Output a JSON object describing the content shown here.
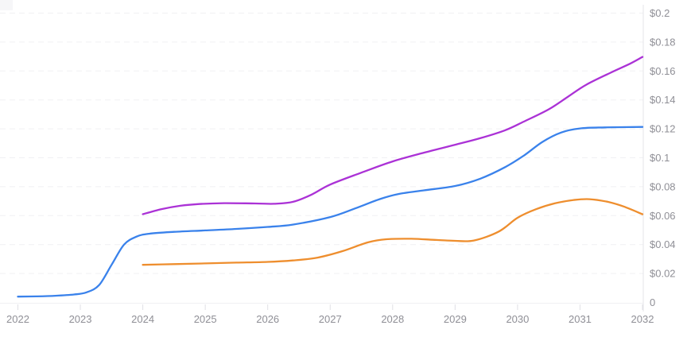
{
  "page": {
    "background": "#ffffff",
    "label_color": "#8f8f96",
    "axis_line_color": "#e4e4e9",
    "tick_color": "#e0e0e5",
    "grid_color": "#f0f0f3"
  },
  "chart_data": {
    "type": "line",
    "title": "",
    "xlabel": "",
    "ylabel": "",
    "legend": "none",
    "grid": "horizontal-dashed",
    "y_axis_side": "right",
    "xlim": [
      2022,
      2032
    ],
    "ylim": [
      0,
      0.2
    ],
    "x_ticks": [
      {
        "v": 2022,
        "label": "2022"
      },
      {
        "v": 2023,
        "label": "2023"
      },
      {
        "v": 2024,
        "label": "2024"
      },
      {
        "v": 2025,
        "label": "2025"
      },
      {
        "v": 2026,
        "label": "2026"
      },
      {
        "v": 2027,
        "label": "2027"
      },
      {
        "v": 2028,
        "label": "2028"
      },
      {
        "v": 2029,
        "label": "2029"
      },
      {
        "v": 2030,
        "label": "2030"
      },
      {
        "v": 2031,
        "label": "2031"
      },
      {
        "v": 2032,
        "label": "2032"
      }
    ],
    "y_ticks": [
      {
        "v": 0.0,
        "label": "0"
      },
      {
        "v": 0.02,
        "label": "$0.02"
      },
      {
        "v": 0.04,
        "label": "$0.04"
      },
      {
        "v": 0.06,
        "label": "$0.06"
      },
      {
        "v": 0.08,
        "label": "$0.08"
      },
      {
        "v": 0.1,
        "label": "$0.1"
      },
      {
        "v": 0.12,
        "label": "$0.12"
      },
      {
        "v": 0.14,
        "label": "$0.14"
      },
      {
        "v": 0.16,
        "label": "$0.16"
      },
      {
        "v": 0.18,
        "label": "$0.18"
      },
      {
        "v": 0.2,
        "label": "$0.2"
      }
    ],
    "series": [
      {
        "name": "blue",
        "color": "#3a82eb",
        "points": [
          [
            2022.0,
            0.004
          ],
          [
            2022.3,
            0.0042
          ],
          [
            2022.6,
            0.0046
          ],
          [
            2022.9,
            0.0055
          ],
          [
            2023.1,
            0.007
          ],
          [
            2023.3,
            0.012
          ],
          [
            2023.5,
            0.026
          ],
          [
            2023.7,
            0.04
          ],
          [
            2023.9,
            0.0455
          ],
          [
            2024.1,
            0.0475
          ],
          [
            2024.5,
            0.0488
          ],
          [
            2025.0,
            0.0498
          ],
          [
            2025.5,
            0.0508
          ],
          [
            2026.0,
            0.0522
          ],
          [
            2026.4,
            0.0538
          ],
          [
            2027.0,
            0.059
          ],
          [
            2027.4,
            0.065
          ],
          [
            2027.8,
            0.0715
          ],
          [
            2028.1,
            0.075
          ],
          [
            2028.5,
            0.0775
          ],
          [
            2029.0,
            0.0805
          ],
          [
            2029.4,
            0.0855
          ],
          [
            2029.8,
            0.0935
          ],
          [
            2030.1,
            0.1015
          ],
          [
            2030.4,
            0.111
          ],
          [
            2030.7,
            0.1175
          ],
          [
            2031.0,
            0.1203
          ],
          [
            2031.4,
            0.121
          ],
          [
            2032.0,
            0.1213
          ]
        ]
      },
      {
        "name": "purple",
        "color": "#ab32d6",
        "points": [
          [
            2024.0,
            0.061
          ],
          [
            2024.3,
            0.0645
          ],
          [
            2024.6,
            0.0668
          ],
          [
            2024.9,
            0.068
          ],
          [
            2025.3,
            0.0686
          ],
          [
            2025.8,
            0.0684
          ],
          [
            2026.1,
            0.0682
          ],
          [
            2026.4,
            0.0695
          ],
          [
            2026.7,
            0.0745
          ],
          [
            2027.0,
            0.0815
          ],
          [
            2027.5,
            0.0897
          ],
          [
            2028.0,
            0.0975
          ],
          [
            2028.5,
            0.1035
          ],
          [
            2029.0,
            0.109
          ],
          [
            2029.4,
            0.1135
          ],
          [
            2029.8,
            0.119
          ],
          [
            2030.1,
            0.125
          ],
          [
            2030.5,
            0.1335
          ],
          [
            2030.8,
            0.142
          ],
          [
            2031.1,
            0.1505
          ],
          [
            2031.5,
            0.159
          ],
          [
            2031.8,
            0.165
          ],
          [
            2032.0,
            0.1697
          ]
        ]
      },
      {
        "name": "orange",
        "color": "#ee8e2e",
        "points": [
          [
            2024.0,
            0.026
          ],
          [
            2024.5,
            0.0265
          ],
          [
            2025.0,
            0.027
          ],
          [
            2025.5,
            0.0275
          ],
          [
            2026.0,
            0.028
          ],
          [
            2026.4,
            0.029
          ],
          [
            2026.8,
            0.031
          ],
          [
            2027.2,
            0.0355
          ],
          [
            2027.6,
            0.0415
          ],
          [
            2027.9,
            0.0437
          ],
          [
            2028.3,
            0.044
          ],
          [
            2028.7,
            0.0432
          ],
          [
            2029.0,
            0.0426
          ],
          [
            2029.3,
            0.0428
          ],
          [
            2029.7,
            0.049
          ],
          [
            2030.0,
            0.0585
          ],
          [
            2030.3,
            0.0645
          ],
          [
            2030.6,
            0.0685
          ],
          [
            2030.9,
            0.0708
          ],
          [
            2031.15,
            0.0714
          ],
          [
            2031.45,
            0.0695
          ],
          [
            2031.7,
            0.0663
          ],
          [
            2032.0,
            0.061
          ]
        ]
      }
    ]
  }
}
